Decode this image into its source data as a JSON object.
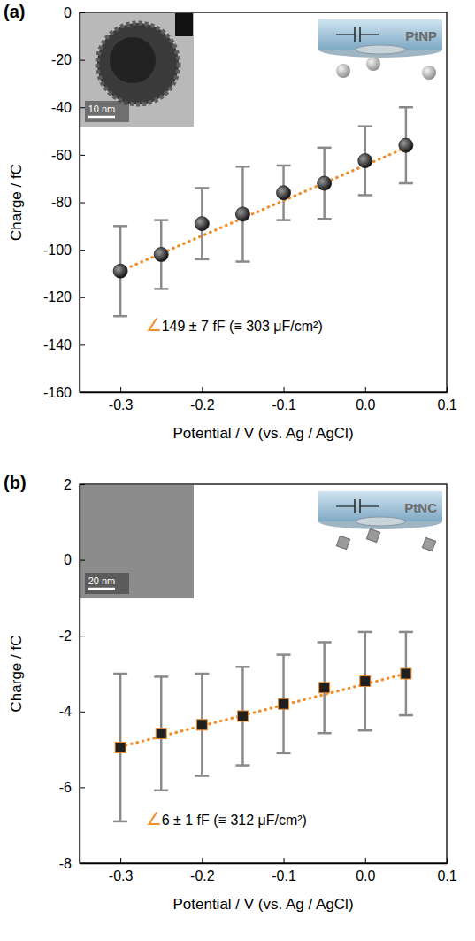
{
  "chart_data": [
    {
      "type": "scatter",
      "panel": "(a)",
      "sample": "PtNP",
      "scale_bar": "10 nm",
      "annotation": "∠149 ± 7 fF (≡ 303 μF/cm²)",
      "x_label": "Potential / V (vs. Ag / AgCl)",
      "y_label": "Charge / fC",
      "x": [
        -0.3,
        -0.25,
        -0.2,
        -0.15,
        -0.1,
        -0.05,
        0,
        0.05
      ],
      "series": [
        {
          "type": "scatter",
          "marker": "circle",
          "color": "#1f1f1f",
          "values": [
            -109,
            -102,
            -89,
            -85,
            -76,
            -72,
            -62.5,
            -56
          ],
          "error": [
            19,
            14.5,
            15,
            20,
            11.5,
            15,
            14.5,
            16
          ]
        },
        {
          "type": "line",
          "line_style": "dotted",
          "color": "#f28c28",
          "x": [
            -0.3,
            0.05
          ],
          "values": [
            -109,
            -57
          ]
        }
      ],
      "xlim": [
        -0.35,
        0.1
      ],
      "xticks": [
        -0.3,
        -0.2,
        -0.1,
        {
          "value": 0,
          "label": "0.0"
        },
        0.1
      ],
      "ylim": [
        -160,
        0
      ],
      "yticks": [
        -160,
        -140,
        -120,
        -100,
        -80,
        -60,
        -40,
        -20,
        0
      ]
    },
    {
      "type": "scatter",
      "panel": "(b)",
      "sample": "PtNC",
      "scale_bar": "20 nm",
      "annotation": "∠6 ± 1 fF (≡ 312 μF/cm²)",
      "x_label": "Potential / V (vs. Ag / AgCl)",
      "y_label": "Charge / fC",
      "x": [
        -0.3,
        -0.25,
        -0.2,
        -0.15,
        -0.1,
        -0.05,
        0,
        0.05
      ],
      "series": [
        {
          "type": "scatter",
          "marker": "square",
          "color": "#1f1f1f",
          "values": [
            -4.95,
            -4.58,
            -4.35,
            -4.12,
            -3.8,
            -3.37,
            -3.2,
            -3.0
          ],
          "error": [
            1.95,
            1.5,
            1.35,
            1.3,
            1.3,
            1.2,
            1.3,
            1.1
          ]
        },
        {
          "type": "line",
          "line_style": "dotted",
          "color": "#f28c28",
          "x": [
            -0.3,
            0.05
          ],
          "values": [
            -4.93,
            -3.0
          ]
        }
      ],
      "xlim": [
        -0.35,
        0.1
      ],
      "xticks": [
        -0.3,
        -0.2,
        -0.1,
        {
          "value": 0,
          "label": "0.0"
        },
        0.1
      ],
      "ylim": [
        -8,
        2
      ],
      "yticks": [
        -8,
        -6,
        -4,
        -2,
        0,
        2
      ]
    }
  ]
}
